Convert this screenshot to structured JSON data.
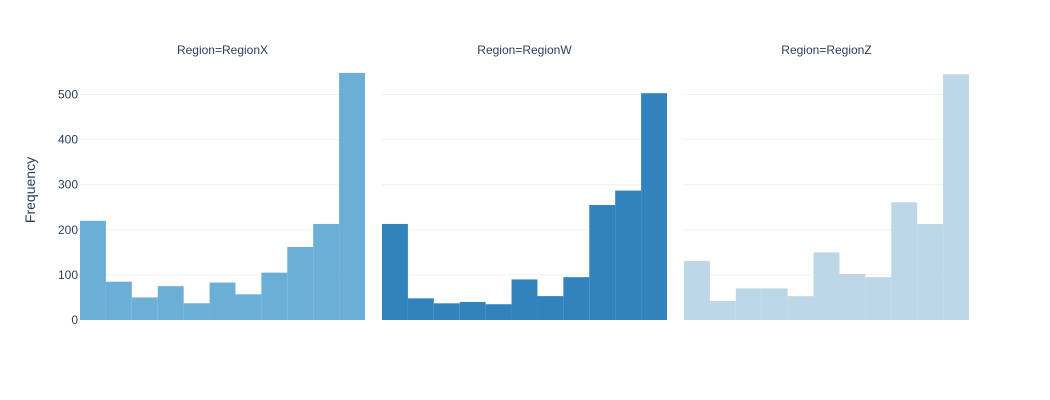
{
  "chart_data": {
    "type": "bar",
    "ylabel": "Frequency",
    "ylim": [
      0,
      550
    ],
    "yticks": [
      0,
      100,
      200,
      300,
      400,
      500
    ],
    "grid": true,
    "legend": "none",
    "facets": [
      {
        "title": "Region=RegionX",
        "color": "#6baed6",
        "values": [
          220,
          85,
          50,
          75,
          37,
          83,
          57,
          105,
          162,
          213,
          548
        ]
      },
      {
        "title": "Region=RegionW",
        "color": "#3182bd",
        "values": [
          213,
          48,
          37,
          40,
          35,
          90,
          53,
          95,
          255,
          287,
          503
        ]
      },
      {
        "title": "Region=RegionZ",
        "color": "#bdd7e7",
        "values": [
          131,
          42,
          70,
          70,
          53,
          150,
          102,
          95,
          261,
          213,
          545
        ]
      }
    ]
  }
}
